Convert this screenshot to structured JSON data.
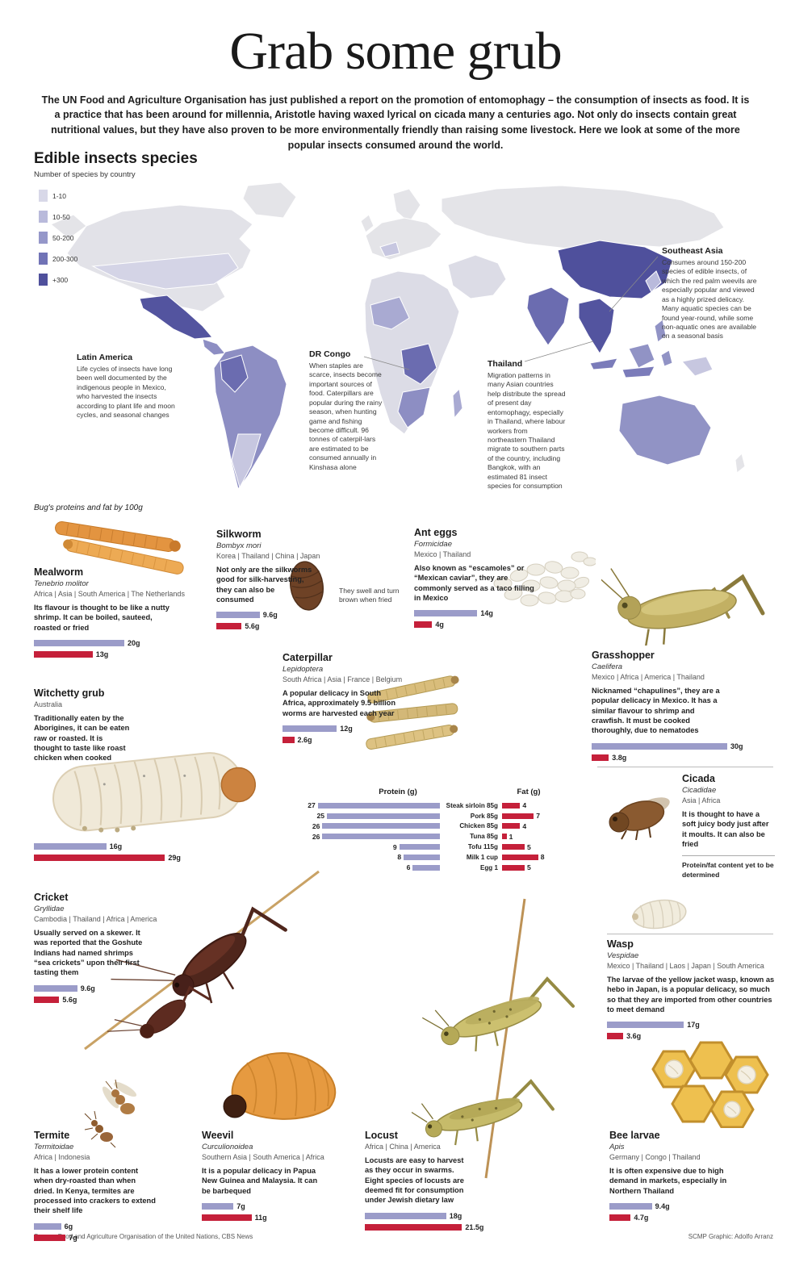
{
  "page": {
    "title": "Grab some grub",
    "intro": "The UN Food and Agriculture Organisation has just published a report on the promotion of entomophagy – the consumption of insects as food. It is a practice that has been around for millennia, Aristotle having waxed lyrical on cicada many a centuries ago. Not only do insects contain great nutritional values, but they have also proven to be more environmentally friendly than raising some livestock. Here we look at some of the more popular insects consumed around the world.",
    "source": "Source: Food and Agriculture Organisation of the United Nations, CBS News",
    "credit": "SCMP Graphic: Adolfo Arranz"
  },
  "map_section": {
    "title": "Edible insects species",
    "subtitle": "Number of species by country",
    "legend": [
      {
        "label": "1-10",
        "color": "#d8d8e8"
      },
      {
        "label": "10-50",
        "color": "#b9badb"
      },
      {
        "label": "50-200",
        "color": "#9597c9"
      },
      {
        "label": "200-300",
        "color": "#7173b6"
      },
      {
        "label": "+300",
        "color": "#4f509c"
      }
    ],
    "annotations": [
      {
        "title": "Latin America",
        "text": "Life cycles of insects have long been well documented by the indigenous people in Mexico, who harvested the insects according to plant life and moon cycles, and seasonal changes"
      },
      {
        "title": "DR Congo",
        "text": "When staples are scarce, insects become important sources of food. Caterpillars are popular during the rainy season, when hunting game and fishing become difficult. 96 tonnes of caterpil-lars are estimated to be consumed annually in Kinshasa alone"
      },
      {
        "title": "Thailand",
        "text": "Migration patterns in many Asian countries help distribute the spread of present day entomophagy, especially in Thailand, where labour workers from northeastern Thailand migrate to southern parts of the country, including Bangkok, with an estimated 81 insect species for consumption"
      },
      {
        "title": "Southeast Asia",
        "text": "Consumes around 150-200 species of edible insects, of which the red palm weevils are especially popular and viewed as a highly prized delicacy. Many aquatic species can be found year-round, while some non-aquatic ones are available on a seasonal basis"
      }
    ]
  },
  "bars_note": "Bug's proteins and fat by 100g",
  "colors": {
    "protein": "#9b9cc9",
    "fat": "#c5203a"
  },
  "insects": [
    {
      "name": "Mealworm",
      "species": "Tenebrio molitor",
      "regions": "Africa | Asia | South America | The Netherlands",
      "description": "Its flavour is thought to be like a nutty shrimp. It can be boiled, sauteed, roasted or fried",
      "protein_g": 20,
      "fat_g": 13,
      "protein_label": "20g",
      "fat_label": "13g"
    },
    {
      "name": "Silkworm",
      "species": "Bombyx mori",
      "regions": "Korea | Thailand | China | Japan",
      "description": "Not only are the silkworms good for silk-harvesting, they can also be consumed",
      "note": "They swell and turn brown when fried",
      "protein_g": 9.6,
      "fat_g": 5.6,
      "protein_label": "9.6g",
      "fat_label": "5.6g"
    },
    {
      "name": "Ant eggs",
      "species": "Formicidae",
      "regions": "Mexico | Thailand",
      "description": "Also known as “escamoles” or “Mexican caviar”, they are commonly served as a taco filling in Mexico",
      "protein_g": 14,
      "fat_g": 4,
      "protein_label": "14g",
      "fat_label": "4g"
    },
    {
      "name": "Grasshopper",
      "species": "Caelifera",
      "regions": "Mexico | Africa | America | Thailand",
      "description": "Nicknamed “chapulines”, they are a popular delicacy in Mexico. It has a similar flavour to shrimp and crawfish. It must be cooked thoroughly, due to nematodes",
      "protein_g": 30,
      "fat_g": 3.8,
      "protein_label": "30g",
      "fat_label": "3.8g"
    },
    {
      "name": "Witchetty grub",
      "species": "",
      "regions": "Australia",
      "description": "Traditionally eaten by the Aborigines, it can be eaten raw or roasted. It is thought to taste like roast chicken when cooked",
      "protein_g": 16,
      "fat_g": 29,
      "protein_label": "16g",
      "fat_label": "29g"
    },
    {
      "name": "Caterpillar",
      "species": "Lepidoptera",
      "regions": "South Africa | Asia | France | Belgium",
      "description": "A popular delicacy in South Africa, approximately 9.5 billion worms are harvested each year",
      "protein_g": 12,
      "fat_g": 2.6,
      "protein_label": "12g",
      "fat_label": "2.6g"
    },
    {
      "name": "Cicada",
      "species": "Cicadidae",
      "regions": "Asia | Africa",
      "description": "It is thought to have a soft juicy body just after it moults. It can also be fried",
      "note": "Protein/fat content yet to be determined"
    },
    {
      "name": "Cricket",
      "species": "Gryllidae",
      "regions": "Cambodia | Thailand | Africa | America",
      "description": "Usually served on a skewer. It was reported that the Goshute Indians had named shrimps “sea crickets” upon their first tasting them",
      "protein_g": 9.6,
      "fat_g": 5.6,
      "protein_label": "9.6g",
      "fat_label": "5.6g"
    },
    {
      "name": "Wasp",
      "species": "Vespidae",
      "regions": "Mexico | Thailand | Laos | Japan | South America",
      "description": "The larvae of the yellow jacket wasp, known as hebo in Japan, is a popular delicacy, so much so that they are imported from other countries to meet demand",
      "protein_g": 17,
      "fat_g": 3.6,
      "protein_label": "17g",
      "fat_label": "3.6g"
    },
    {
      "name": "Termite",
      "species": "Termitoidae",
      "regions": "Africa | Indonesia",
      "description": "It has a lower protein content when dry-roasted than when dried. In Kenya, termites are processed into crackers to extend their shelf life",
      "protein_g": 6,
      "fat_g": 7,
      "protein_label": "6g",
      "fat_label": "7g"
    },
    {
      "name": "Weevil",
      "species": "Curculionoidea",
      "regions": "Southern Asia | South America | Africa",
      "description": "It is a popular delicacy in Papua New Guinea and Malaysia. It can be barbequed",
      "protein_g": 7,
      "fat_g": 11,
      "protein_label": "7g",
      "fat_label": "11g"
    },
    {
      "name": "Locust",
      "species": "",
      "regions": "Africa | China | America",
      "description": "Locusts are easy to harvest as they occur in swarms. Eight species of locusts are deemed fit for consumption under Jewish dietary law",
      "protein_g": 18,
      "fat_g": 21.5,
      "protein_label": "18g",
      "fat_label": "21.5g"
    },
    {
      "name": "Bee larvae",
      "species": "Apis",
      "regions": "Germany | Congo | Thailand",
      "description": "It is often expensive due to high demand in markets, especially in Northern Thailand",
      "protein_g": 9.4,
      "fat_g": 4.7,
      "protein_label": "9.4g",
      "fat_label": "4.7g"
    }
  ],
  "chart_data": {
    "type": "bar",
    "title": "",
    "col_headers": [
      "Protein (g)",
      "Fat (g)"
    ],
    "categories": [
      "Steak sirloin 85g",
      "Pork 85g",
      "Chicken 85g",
      "Tuna 85g",
      "Tofu 115g",
      "Milk 1 cup",
      "Egg 1"
    ],
    "series": [
      {
        "name": "Protein (g)",
        "values": [
          27,
          25,
          26,
          26,
          9,
          8,
          6
        ]
      },
      {
        "name": "Fat (g)",
        "values": [
          4,
          7,
          4,
          1,
          5,
          8,
          5
        ]
      }
    ],
    "legend_position": "top",
    "grid": false
  }
}
